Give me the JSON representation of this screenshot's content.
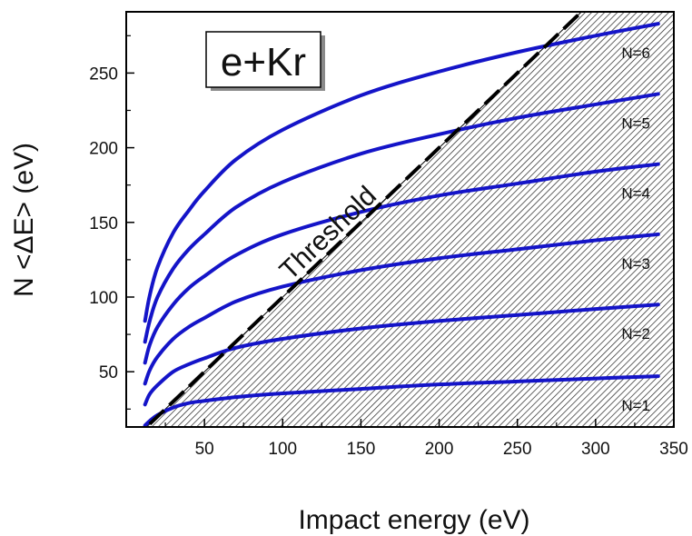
{
  "chart_data": {
    "type": "line",
    "title": "",
    "xlabel": "Impact energy (eV)",
    "ylabel": "N <ΔE> (eV)",
    "xlim": [
      0,
      350
    ],
    "ylim": [
      13,
      291
    ],
    "x_ticks": [
      50,
      100,
      150,
      200,
      250,
      300,
      350
    ],
    "y_ticks": [
      50,
      100,
      150,
      200,
      250
    ],
    "box_label": "e+Kr",
    "threshold_label": "Threshold",
    "curve_color": "#1414c8",
    "threshold": {
      "x": [
        15,
        300
      ],
      "y": [
        15,
        300
      ],
      "style": "dashed",
      "color": "#000000"
    },
    "series": [
      {
        "label": "N=1",
        "x": [
          12,
          15,
          20,
          30,
          40,
          50,
          70,
          100,
          150,
          200,
          250,
          300,
          340
        ],
        "y": [
          14,
          17,
          21,
          26,
          29,
          30.5,
          33,
          35.5,
          38.5,
          41.5,
          43.5,
          45.5,
          47
        ]
      },
      {
        "label": "N=2",
        "x": [
          12,
          15,
          20,
          30,
          40,
          50,
          70,
          100,
          150,
          200,
          250,
          300,
          340
        ],
        "y": [
          28,
          35,
          41,
          50,
          55,
          59,
          66,
          72,
          79,
          84,
          88,
          92,
          95
        ]
      },
      {
        "label": "N=3",
        "x": [
          12,
          15,
          20,
          30,
          40,
          50,
          70,
          100,
          150,
          200,
          250,
          300,
          340
        ],
        "y": [
          42,
          51,
          60,
          72,
          80,
          86,
          97,
          107,
          118,
          126,
          132,
          138,
          142
        ]
      },
      {
        "label": "N=4",
        "x": [
          12,
          15,
          20,
          30,
          40,
          50,
          70,
          100,
          150,
          200,
          250,
          300,
          340
        ],
        "y": [
          56,
          68,
          80,
          95,
          106,
          114,
          128,
          142,
          157,
          168,
          176,
          184,
          189
        ]
      },
      {
        "label": "N=5",
        "x": [
          12,
          15,
          20,
          30,
          40,
          50,
          70,
          100,
          150,
          200,
          250,
          300,
          340
        ],
        "y": [
          70,
          84,
          100,
          119,
          132,
          142,
          160,
          177,
          196,
          209,
          220,
          229,
          236
        ]
      },
      {
        "label": "N=6",
        "x": [
          12,
          15,
          20,
          30,
          40,
          50,
          70,
          100,
          150,
          200,
          250,
          300,
          340
        ],
        "y": [
          84,
          101,
          120,
          143,
          158,
          171,
          192,
          212,
          235,
          251,
          264,
          275,
          283
        ]
      }
    ]
  }
}
